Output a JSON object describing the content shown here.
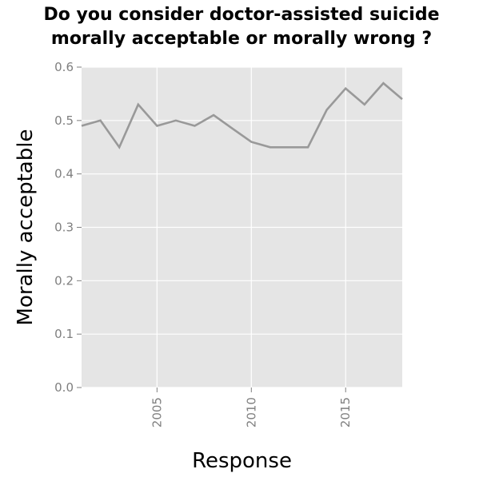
{
  "chart_data": {
    "type": "line",
    "title_line1": "Do you consider doctor-assisted suicide",
    "title_line2": "morally acceptable or morally wrong ?",
    "xlabel": "Response",
    "ylabel": "Morally acceptable",
    "xlim": [
      2001,
      2018
    ],
    "ylim": [
      0,
      0.6
    ],
    "x_ticks": [
      2005,
      2010,
      2015
    ],
    "x_tick_labels": [
      "2005",
      "2010",
      "2015"
    ],
    "y_ticks": [
      0,
      0.1,
      0.2,
      0.3,
      0.4,
      0.5,
      0.6
    ],
    "y_tick_labels": [
      "0.0",
      "0.1",
      "0.2",
      "0.3",
      "0.4",
      "0.5",
      "0.6"
    ],
    "grid": true,
    "series": [
      {
        "x": [
          2001,
          2002,
          2003,
          2004,
          2005,
          2006,
          2007,
          2008,
          2009,
          2010,
          2011,
          2012,
          2013,
          2014,
          2015,
          2016,
          2017,
          2018
        ],
        "values": [
          0.49,
          0.5,
          0.45,
          0.53,
          0.49,
          0.5,
          0.49,
          0.51,
          0.485,
          0.46,
          0.45,
          0.45,
          0.45,
          0.52,
          0.56,
          0.53,
          0.57,
          0.54
        ]
      }
    ],
    "colors": {
      "panel": "#e5e5e5",
      "grid": "#ffffff",
      "line": "#999999",
      "tick": "#7f7f7f"
    }
  }
}
